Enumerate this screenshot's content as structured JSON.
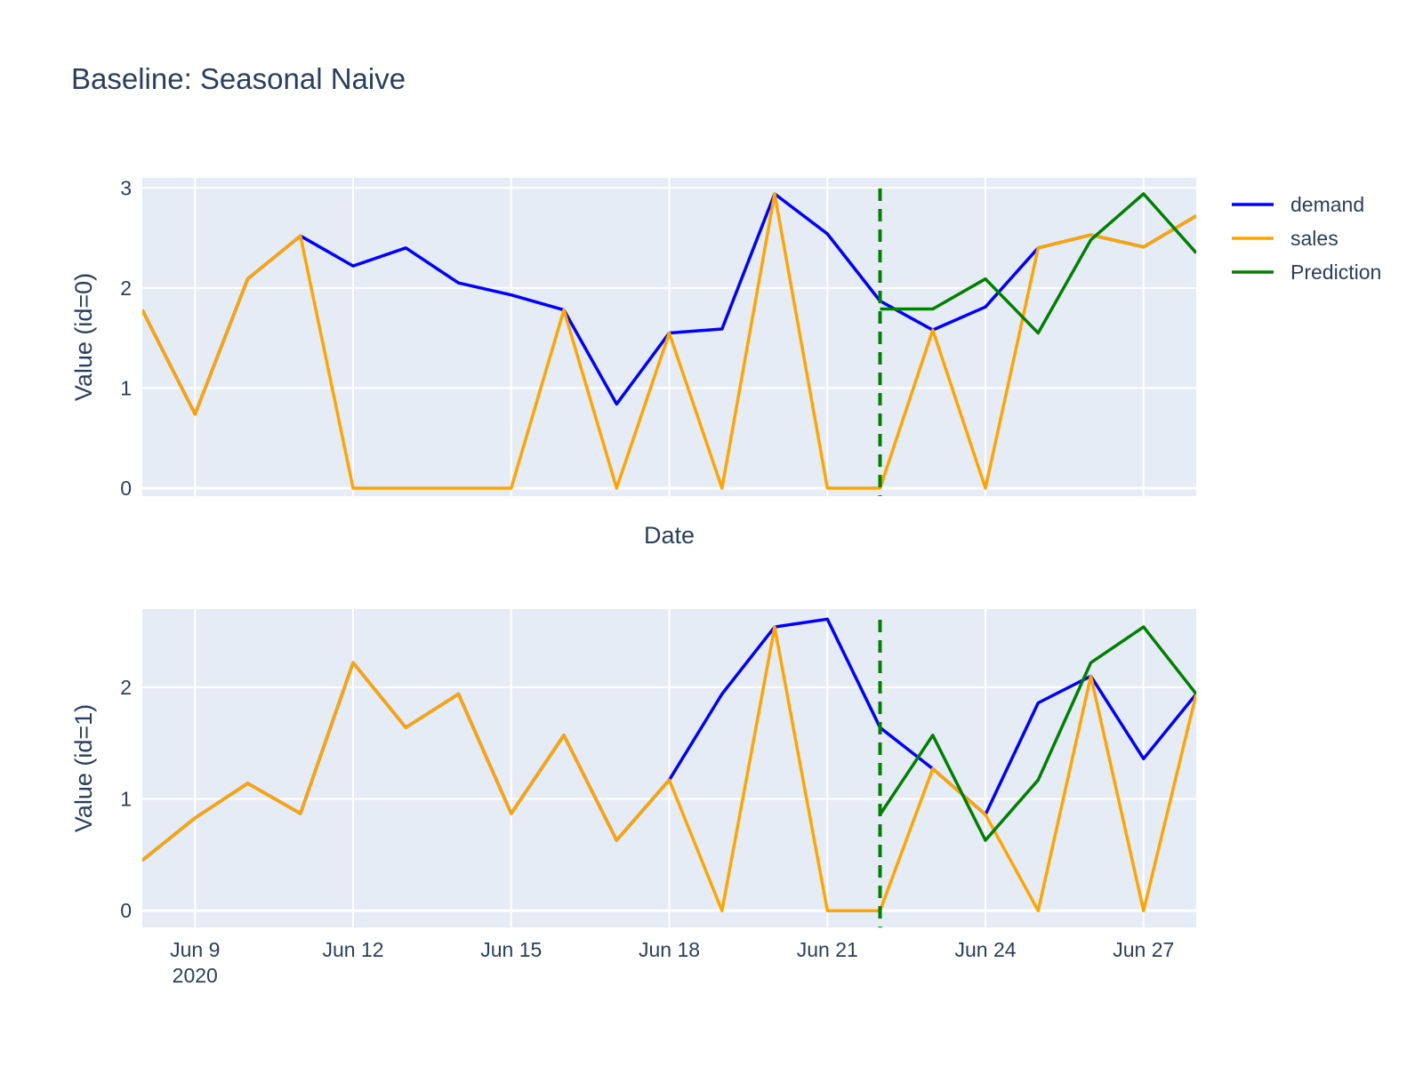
{
  "chart_data": {
    "type": "line",
    "title": "Baseline: Seasonal Naive",
    "x_dates": [
      "2020-06-08",
      "2020-06-09",
      "2020-06-10",
      "2020-06-11",
      "2020-06-12",
      "2020-06-13",
      "2020-06-14",
      "2020-06-15",
      "2020-06-16",
      "2020-06-17",
      "2020-06-18",
      "2020-06-19",
      "2020-06-20",
      "2020-06-21",
      "2020-06-22",
      "2020-06-23",
      "2020-06-24",
      "2020-06-25",
      "2020-06-26",
      "2020-06-27",
      "2020-06-28"
    ],
    "xlim": [
      "2020-06-08",
      "2020-06-28"
    ],
    "xtick_dates": [
      "2020-06-09",
      "2020-06-12",
      "2020-06-15",
      "2020-06-18",
      "2020-06-21",
      "2020-06-24",
      "2020-06-27"
    ],
    "xtick_labels": [
      "Jun 9",
      "Jun 12",
      "Jun 15",
      "Jun 18",
      "Jun 21",
      "Jun 24",
      "Jun 27"
    ],
    "xtick_year_label": "2020",
    "forecast_start": "2020-06-22",
    "legend": {
      "position": "top-right",
      "entries": [
        "demand",
        "sales",
        "Prediction"
      ]
    },
    "colors": {
      "demand": "#0000ff",
      "sales": "#ffa500",
      "Prediction": "#008000",
      "plot_bg": "#e5ecf6",
      "grid": "#ffffff"
    },
    "subplots": [
      {
        "ylabel": "Value (id=0)",
        "xlabel": "Date",
        "ylim": [
          -0.08,
          3.1
        ],
        "yticks": [
          0,
          1,
          2,
          3
        ],
        "show_x_ticks": false,
        "series": [
          {
            "name": "demand",
            "values": [
              1.78,
              0.74,
              2.09,
              2.52,
              2.22,
              2.4,
              2.05,
              1.93,
              1.78,
              0.84,
              1.55,
              1.59,
              2.94,
              2.54,
              1.87,
              1.58,
              1.81,
              2.4,
              2.53,
              2.41,
              2.72
            ]
          },
          {
            "name": "sales",
            "values": [
              1.78,
              0.74,
              2.09,
              2.52,
              0,
              0,
              0,
              0,
              1.78,
              0,
              1.55,
              0,
              2.94,
              0,
              0,
              1.58,
              0,
              2.4,
              2.53,
              2.41,
              2.72
            ]
          },
          {
            "name": "Prediction",
            "start_index": 14,
            "values": [
              1.79,
              1.79,
              2.09,
              1.55,
              2.48,
              2.94,
              2.35
            ]
          }
        ]
      },
      {
        "ylabel": "Value (id=1)",
        "xlabel": "",
        "ylim": [
          -0.15,
          2.7
        ],
        "yticks": [
          0,
          1,
          2
        ],
        "show_x_ticks": true,
        "series": [
          {
            "name": "demand",
            "values": [
              0.45,
              0.83,
              1.14,
              0.87,
              2.22,
              1.64,
              1.94,
              0.87,
              1.57,
              0.63,
              1.17,
              1.94,
              2.54,
              2.61,
              1.64,
              1.27,
              0.86,
              1.86,
              2.1,
              1.36,
              1.94
            ]
          },
          {
            "name": "sales",
            "values": [
              0.45,
              0.83,
              1.14,
              0.87,
              2.22,
              1.64,
              1.94,
              0.87,
              1.57,
              0.63,
              1.17,
              0,
              2.54,
              0,
              0,
              1.27,
              0.86,
              0,
              2.1,
              0,
              1.94
            ]
          },
          {
            "name": "Prediction",
            "start_index": 14,
            "values": [
              0.86,
              1.57,
              0.63,
              1.17,
              2.22,
              2.54,
              1.94
            ]
          }
        ]
      }
    ]
  }
}
